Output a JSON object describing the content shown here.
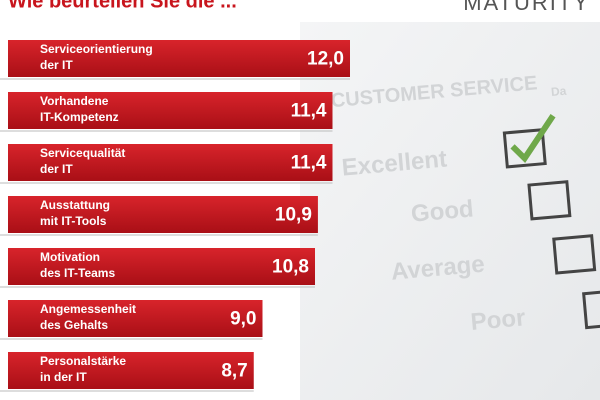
{
  "chart_data": {
    "type": "bar",
    "orientation": "horizontal",
    "title": "Wie beurteilen Sie die ...",
    "logo": "MATURITY",
    "categories": [
      [
        "Serviceorientierung",
        "der IT"
      ],
      [
        "Vorhandene",
        "IT-Kompetenz"
      ],
      [
        "Servicequalität",
        "der IT"
      ],
      [
        "Ausstattung",
        "mit IT-Tools"
      ],
      [
        "Motivation",
        "des IT-Teams"
      ],
      [
        "Angemessenheit",
        "des Gehalts"
      ],
      [
        "Personalstärke",
        "in der IT"
      ]
    ],
    "values": [
      12.0,
      11.4,
      11.4,
      10.9,
      10.8,
      9.0,
      8.7
    ],
    "value_labels": [
      "12,0",
      "11,4",
      "11,4",
      "10,9",
      "10,8",
      "9,0",
      "8,7"
    ],
    "color": "#c8151d"
  },
  "background": {
    "heading": "CUSTOMER SERVICE",
    "date": "Da",
    "options": [
      "Excellent",
      "Good",
      "Average",
      "Poor"
    ]
  }
}
